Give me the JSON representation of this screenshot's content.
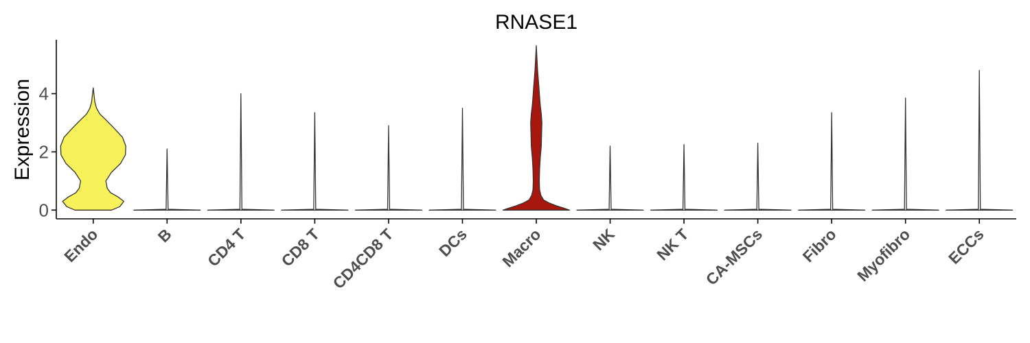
{
  "chart_data": {
    "type": "violin",
    "title": "RNASE1",
    "xlabel": "",
    "ylabel": "Expression",
    "ylim": [
      -0.3,
      5.85
    ],
    "yticks": [
      0,
      2,
      4
    ],
    "categories": [
      "Endo",
      "B",
      "CD4 T",
      "CD8 T",
      "CD4CD8 T",
      "DCs",
      "Macro",
      "NK",
      "NK T",
      "CA-MSCs",
      "Fibro",
      "Myofibro",
      "ECCs"
    ],
    "colors": [
      "#F7F15A",
      "#FFFFFF",
      "#FFFFFF",
      "#FFFFFF",
      "#FFFFFF",
      "#FFFFFF",
      "#A8170E",
      "#FFFFFF",
      "#FFFFFF",
      "#FFFFFF",
      "#FFFFFF",
      "#FFFFFF",
      "#FFFFFF"
    ],
    "max_values": [
      4.2,
      2.1,
      4.0,
      3.35,
      2.9,
      3.5,
      5.65,
      2.2,
      2.25,
      2.3,
      3.35,
      3.85,
      4.8
    ],
    "density_profiles": [
      [
        [
          0,
          0.55
        ],
        [
          0.12,
          0.8
        ],
        [
          0.3,
          0.92
        ],
        [
          0.45,
          0.75
        ],
        [
          0.6,
          0.52
        ],
        [
          0.75,
          0.42
        ],
        [
          1.0,
          0.38
        ],
        [
          1.3,
          0.55
        ],
        [
          1.6,
          0.82
        ],
        [
          1.9,
          0.97
        ],
        [
          2.2,
          0.98
        ],
        [
          2.5,
          0.88
        ],
        [
          2.8,
          0.64
        ],
        [
          3.1,
          0.38
        ],
        [
          3.3,
          0.2
        ],
        [
          3.5,
          0.1
        ],
        [
          3.7,
          0.05
        ],
        [
          3.9,
          0.03
        ],
        [
          4.2,
          0
        ]
      ],
      [
        [
          0,
          1.0
        ],
        [
          0.03,
          0.03
        ],
        [
          2.1,
          0.0
        ]
      ],
      [
        [
          0,
          1.0
        ],
        [
          0.03,
          0.03
        ],
        [
          4.0,
          0.0
        ]
      ],
      [
        [
          0,
          1.0
        ],
        [
          0.03,
          0.03
        ],
        [
          3.35,
          0.0
        ]
      ],
      [
        [
          0,
          1.0
        ],
        [
          0.03,
          0.03
        ],
        [
          2.9,
          0.0
        ]
      ],
      [
        [
          0,
          1.0
        ],
        [
          0.03,
          0.03
        ],
        [
          3.5,
          0.0
        ]
      ],
      [
        [
          0,
          1.0
        ],
        [
          0.07,
          0.82
        ],
        [
          0.15,
          0.6
        ],
        [
          0.25,
          0.38
        ],
        [
          0.35,
          0.22
        ],
        [
          0.5,
          0.14
        ],
        [
          0.7,
          0.1
        ],
        [
          1.0,
          0.09
        ],
        [
          1.4,
          0.1
        ],
        [
          1.8,
          0.12
        ],
        [
          2.2,
          0.15
        ],
        [
          2.6,
          0.16
        ],
        [
          3.0,
          0.17
        ],
        [
          3.3,
          0.15
        ],
        [
          3.6,
          0.12
        ],
        [
          3.9,
          0.1
        ],
        [
          4.2,
          0.08
        ],
        [
          4.5,
          0.06
        ],
        [
          4.8,
          0.04
        ],
        [
          5.2,
          0.02
        ],
        [
          5.65,
          0.0
        ]
      ],
      [
        [
          0,
          1.0
        ],
        [
          0.03,
          0.03
        ],
        [
          2.2,
          0.0
        ]
      ],
      [
        [
          0,
          1.0
        ],
        [
          0.03,
          0.03
        ],
        [
          2.25,
          0.0
        ]
      ],
      [
        [
          0,
          1.0
        ],
        [
          0.03,
          0.03
        ],
        [
          2.3,
          0.0
        ]
      ],
      [
        [
          0,
          1.0
        ],
        [
          0.03,
          0.03
        ],
        [
          3.35,
          0.0
        ]
      ],
      [
        [
          0,
          1.0
        ],
        [
          0.03,
          0.03
        ],
        [
          3.85,
          0.0
        ]
      ],
      [
        [
          0,
          1.0
        ],
        [
          0.03,
          0.03
        ],
        [
          4.8,
          0.0
        ]
      ]
    ],
    "grid": false,
    "legend": "none"
  }
}
